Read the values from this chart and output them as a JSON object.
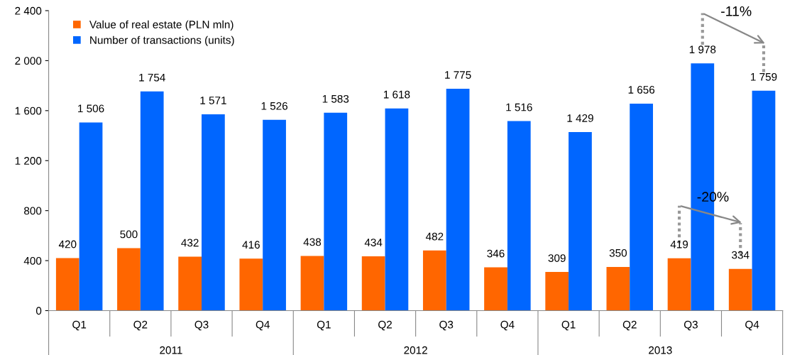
{
  "chart_data": {
    "type": "bar",
    "categories": [
      "Q1",
      "Q2",
      "Q3",
      "Q4",
      "Q1",
      "Q2",
      "Q3",
      "Q4",
      "Q1",
      "Q2",
      "Q3",
      "Q4"
    ],
    "series": [
      {
        "name": "Value of real estate (PLN mln)",
        "color": "#ff6600",
        "values": [
          420,
          500,
          432,
          416,
          438,
          434,
          482,
          346,
          309,
          350,
          419,
          334
        ],
        "value_labels": [
          "420",
          "500",
          "432",
          "416",
          "438",
          "434",
          "482",
          "346",
          "309",
          "350",
          "419",
          "334"
        ]
      },
      {
        "name": "Number of transactions (units)",
        "color": "#0066ff",
        "values": [
          1506,
          1754,
          1571,
          1526,
          1583,
          1618,
          1775,
          1516,
          1429,
          1656,
          1978,
          1759
        ],
        "value_labels": [
          "1 506",
          "1 754",
          "1 571",
          "1 526",
          "1 583",
          "1 618",
          "1 775",
          "1 516",
          "1 429",
          "1 656",
          "1 978",
          "1 759"
        ]
      }
    ],
    "ylim": [
      0,
      2400
    ],
    "yticks": [
      0,
      400,
      800,
      {
        "value": 1200,
        "label": "1 200"
      },
      {
        "value": 1600,
        "label": "1 600"
      },
      {
        "value": 2000,
        "label": "2 000"
      },
      {
        "value": 2400,
        "label": "2 400"
      }
    ],
    "annotations": [
      "2011",
      "2012",
      "2013",
      "-11%",
      "-20%"
    ],
    "legend": "top left",
    "grid": false
  }
}
